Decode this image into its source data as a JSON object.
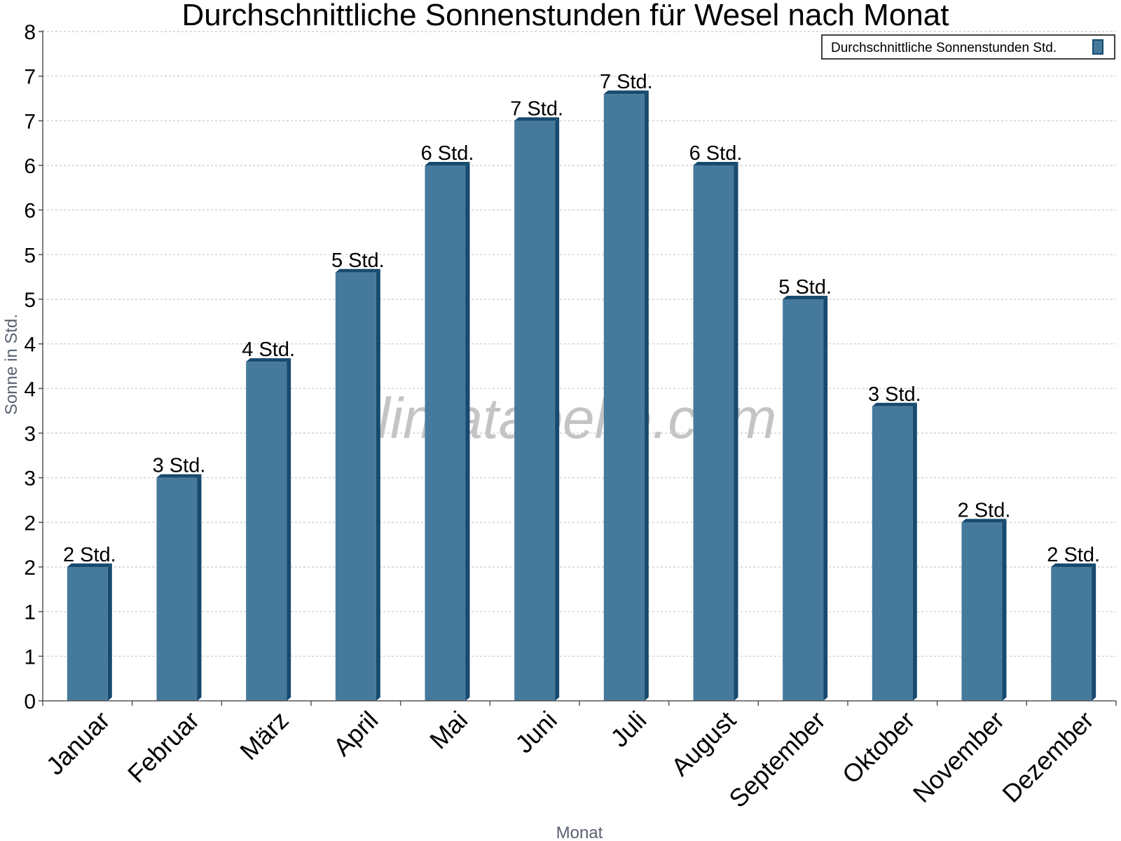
{
  "colors": {
    "bar_front": "#467a9c",
    "bar_side": "#174a6e",
    "bar_top": "#174a6e",
    "grid": "#c8c8c8",
    "axis": "#555555"
  },
  "watermark": "klimatabelle.com",
  "chart_data": {
    "type": "bar",
    "title": "Durchschnittliche Sonnenstunden für Wesel nach Monat",
    "xlabel": "Monat",
    "ylabel": "Sonne in Std.",
    "ylim": [
      0,
      7.5
    ],
    "y_tick_labels": [
      "0",
      "1",
      "1",
      "2",
      "2",
      "3",
      "3",
      "4",
      "4",
      "5",
      "5",
      "6",
      "6",
      "7",
      "7",
      "8"
    ],
    "grid": "horizontal dotted",
    "legend_position": "top-right",
    "categories": [
      "Januar",
      "Februar",
      "März",
      "April",
      "Mai",
      "Juni",
      "Juli",
      "August",
      "September",
      "Oktober",
      "November",
      "Dezember"
    ],
    "series": [
      {
        "name": "Durchschnittliche Sonnenstunden Std.",
        "values": [
          1.5,
          2.5,
          3.8,
          4.8,
          6.0,
          6.5,
          6.8,
          6.0,
          4.5,
          3.3,
          2.0,
          1.5
        ],
        "data_labels": [
          "2 Std.",
          "3 Std.",
          "4 Std.",
          "5 Std.",
          "6 Std.",
          "7 Std.",
          "7 Std.",
          "6 Std.",
          "5 Std.",
          "3 Std.",
          "2 Std.",
          "2 Std."
        ]
      }
    ]
  }
}
